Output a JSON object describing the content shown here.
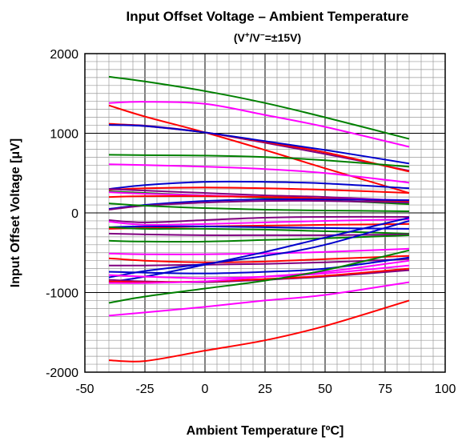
{
  "chart_data": {
    "type": "line",
    "title": "Input Offset Voltage – Ambient Temperature",
    "subtitle_parts": [
      "(V",
      "+",
      "/V",
      "−",
      "=±15V)"
    ],
    "xlabel": "Ambient Temperature [ºC]",
    "ylabel": "Input Offset Voltage [μV]",
    "xlim": [
      -50,
      100
    ],
    "ylim": [
      -2000,
      2000
    ],
    "xticks": [
      "-50",
      "-25",
      "0",
      "25",
      "50",
      "75",
      "100"
    ],
    "yticks": [
      "2000",
      "1000",
      "0",
      "-1000",
      "-2000"
    ],
    "grid": true,
    "x": [
      -40,
      -25,
      0,
      25,
      50,
      85
    ],
    "series": [
      {
        "color": "#008000",
        "values": [
          1710,
          1650,
          1530,
          1380,
          1200,
          930
        ]
      },
      {
        "color": "#ff00ff",
        "values": [
          1380,
          1395,
          1370,
          1230,
          1080,
          830
        ]
      },
      {
        "color": "#ff0000",
        "values": [
          1350,
          1210,
          1010,
          790,
          560,
          250
        ]
      },
      {
        "color": "#800080",
        "values": [
          1110,
          1095,
          1010,
          880,
          740,
          530
        ]
      },
      {
        "color": "#ff0000",
        "values": [
          1120,
          1090,
          1010,
          890,
          760,
          520
        ]
      },
      {
        "color": "#0000cc",
        "values": [
          1105,
          1090,
          1010,
          900,
          790,
          620
        ]
      },
      {
        "color": "#008000",
        "values": [
          730,
          725,
          720,
          700,
          660,
          580
        ]
      },
      {
        "color": "#ff00ff",
        "values": [
          610,
          600,
          580,
          550,
          500,
          380
        ]
      },
      {
        "color": "#0000cc",
        "values": [
          300,
          350,
          390,
          390,
          370,
          310
        ]
      },
      {
        "color": "#ff0000",
        "values": [
          290,
          310,
          320,
          310,
          290,
          250
        ]
      },
      {
        "color": "#800080",
        "values": [
          300,
          280,
          250,
          220,
          200,
          150
        ]
      },
      {
        "color": "#008000",
        "values": [
          270,
          250,
          220,
          190,
          160,
          110
        ]
      },
      {
        "color": "#ff00ff",
        "values": [
          260,
          240,
          220,
          200,
          180,
          160
        ]
      },
      {
        "color": "#ff0000",
        "values": [
          200,
          210,
          210,
          200,
          180,
          140
        ]
      },
      {
        "color": "#0000cc",
        "values": [
          50,
          100,
          150,
          170,
          170,
          160
        ]
      },
      {
        "color": "#800080",
        "values": [
          40,
          90,
          130,
          150,
          150,
          130
        ]
      },
      {
        "color": "#008000",
        "values": [
          120,
          90,
          60,
          40,
          30,
          20
        ]
      },
      {
        "color": "#800080",
        "values": [
          -90,
          -120,
          -90,
          -60,
          -50,
          -50
        ]
      },
      {
        "color": "#ff00ff",
        "values": [
          -110,
          -150,
          -140,
          -120,
          -100,
          -80
        ]
      },
      {
        "color": "#ff0000",
        "values": [
          -200,
          -190,
          -170,
          -160,
          -150,
          -140
        ]
      },
      {
        "color": "#0000cc",
        "values": [
          -180,
          -170,
          -170,
          -180,
          -190,
          -200
        ]
      },
      {
        "color": "#008000",
        "values": [
          -180,
          -200,
          -200,
          -210,
          -230,
          -260
        ]
      },
      {
        "color": "#800080",
        "values": [
          -260,
          -270,
          -280,
          -280,
          -280,
          -270
        ]
      },
      {
        "color": "#008000",
        "values": [
          -350,
          -360,
          -360,
          -340,
          -320,
          -280
        ]
      },
      {
        "color": "#ff00ff",
        "values": [
          -510,
          -520,
          -520,
          -510,
          -490,
          -450
        ]
      },
      {
        "color": "#ff0000",
        "values": [
          -570,
          -600,
          -620,
          -610,
          -580,
          -540
        ]
      },
      {
        "color": "#800080",
        "values": [
          -660,
          -660,
          -650,
          -640,
          -620,
          -580
        ]
      },
      {
        "color": "#0000cc",
        "values": [
          -810,
          -730,
          -640,
          -540,
          -400,
          -100
        ]
      },
      {
        "color": "#0000cc",
        "values": [
          -870,
          -800,
          -650,
          -490,
          -310,
          -60
        ]
      },
      {
        "color": "#ff00ff",
        "values": [
          -780,
          -800,
          -820,
          -800,
          -760,
          -660
        ]
      },
      {
        "color": "#800080",
        "values": [
          -840,
          -860,
          -870,
          -840,
          -800,
          -720
        ]
      },
      {
        "color": "#ff0000",
        "values": [
          -860,
          -870,
          -860,
          -830,
          -790,
          -700
        ]
      },
      {
        "color": "#ff00ff",
        "values": [
          -880,
          -880,
          -860,
          -800,
          -740,
          -600
        ]
      },
      {
        "color": "#0000cc",
        "values": [
          -740,
          -750,
          -760,
          -740,
          -700,
          -560
        ]
      },
      {
        "color": "#008000",
        "values": [
          -1130,
          -1050,
          -950,
          -850,
          -720,
          -470
        ]
      },
      {
        "color": "#ff00ff",
        "values": [
          -1290,
          -1250,
          -1180,
          -1100,
          -1030,
          -870
        ]
      },
      {
        "color": "#ff0000",
        "values": [
          -1850,
          -1860,
          -1730,
          -1600,
          -1420,
          -1100
        ]
      }
    ]
  }
}
